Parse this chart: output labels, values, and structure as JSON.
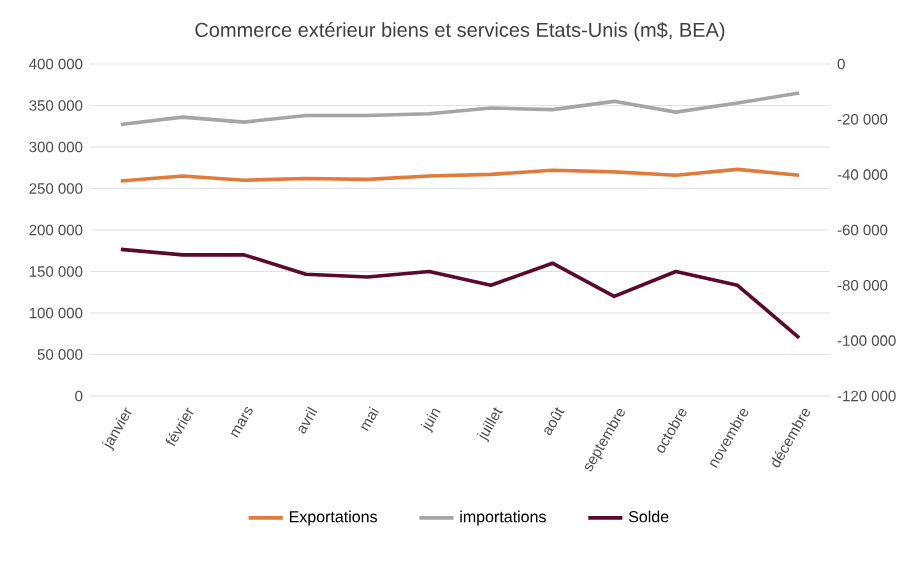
{
  "chart_data": {
    "type": "line",
    "title": "Commerce extérieur biens et services Etats-Unis (m$, BEA)",
    "categories": [
      "janvier",
      "février",
      "mars",
      "avril",
      "mai",
      "juin",
      "juillet",
      "août",
      "septembre",
      "octobre",
      "novembre",
      "décembre"
    ],
    "series": [
      {
        "name": "Exportations",
        "color": "#e07b39",
        "values": [
          259000,
          265000,
          260000,
          262000,
          261000,
          265000,
          267000,
          272000,
          270000,
          266000,
          273000,
          266000
        ]
      },
      {
        "name": "importations",
        "color": "#a5a5a5",
        "values": [
          327000,
          336000,
          330000,
          338000,
          338000,
          340000,
          347000,
          345000,
          355000,
          342000,
          353000,
          365000
        ]
      },
      {
        "name": "Solde",
        "color": "#5b0a2e",
        "axis": "y2",
        "values": [
          -67000,
          -69000,
          -69000,
          -76000,
          -77000,
          -75000,
          -80000,
          -72000,
          -84000,
          -75000,
          -80000,
          -99000
        ]
      }
    ],
    "ylim": [
      0,
      400000
    ],
    "yticks": [
      {
        "value": 0,
        "label": "0"
      },
      {
        "value": 50000,
        "label": "50 000"
      },
      {
        "value": 100000,
        "label": "100 000"
      },
      {
        "value": 150000,
        "label": "150 000"
      },
      {
        "value": 200000,
        "label": "200 000"
      },
      {
        "value": 250000,
        "label": "250 000"
      },
      {
        "value": 300000,
        "label": "300 000"
      },
      {
        "value": 350000,
        "label": "350 000"
      },
      {
        "value": 400000,
        "label": "400 000"
      }
    ],
    "y2lim": [
      -120000,
      0
    ],
    "y2ticks": [
      {
        "value": -120000,
        "label": "-120 000"
      },
      {
        "value": -100000,
        "label": "-100 000"
      },
      {
        "value": -80000,
        "label": "-80 000"
      },
      {
        "value": -60000,
        "label": "-60 000"
      },
      {
        "value": -40000,
        "label": "-40 000"
      },
      {
        "value": -20000,
        "label": "-20 000"
      },
      {
        "value": 0,
        "label": "0"
      }
    ],
    "grid": "y",
    "legend": "bottom",
    "marker": "none",
    "line_style": "solid"
  }
}
